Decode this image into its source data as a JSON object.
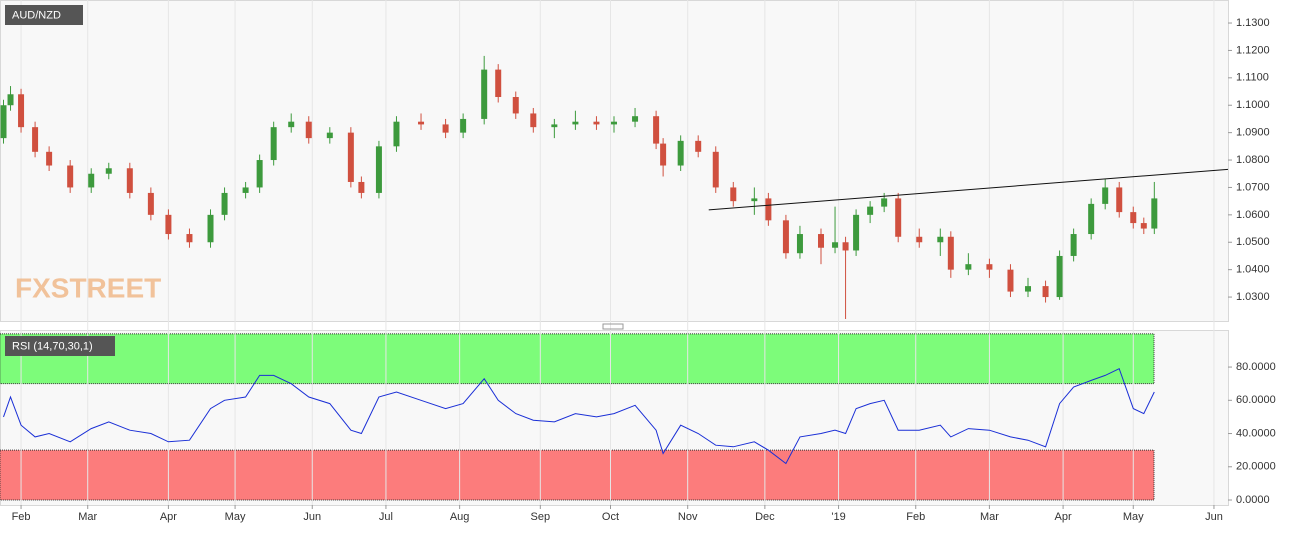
{
  "chart_data": [
    {
      "type": "candlestick",
      "title": "AUD/NZD",
      "watermark": "FXSTREET",
      "x": [
        1,
        3,
        6,
        10,
        14,
        20,
        26,
        31,
        37,
        43,
        48,
        54,
        60,
        64,
        70,
        74,
        78,
        83,
        88,
        94,
        100,
        103,
        108,
        113,
        120,
        127,
        132,
        138,
        142,
        147,
        152,
        158,
        164,
        170,
        175,
        181,
        187,
        189,
        194,
        199,
        204,
        209,
        215,
        219,
        224,
        228,
        234,
        238,
        241,
        244,
        248,
        252,
        256,
        262,
        268,
        271,
        276,
        282,
        288,
        293,
        298,
        302,
        306,
        311,
        315,
        319,
        323,
        326,
        329
      ],
      "open": [
        1.088,
        1.1,
        1.104,
        1.092,
        1.083,
        1.078,
        1.07,
        1.075,
        1.077,
        1.068,
        1.06,
        1.053,
        1.05,
        1.06,
        1.068,
        1.07,
        1.08,
        1.092,
        1.094,
        1.088,
        1.09,
        1.072,
        1.068,
        1.085,
        1.094,
        1.093,
        1.09,
        1.095,
        1.113,
        1.103,
        1.097,
        1.092,
        1.093,
        1.094,
        1.093,
        1.094,
        1.096,
        1.086,
        1.078,
        1.087,
        1.083,
        1.07,
        1.065,
        1.066,
        1.058,
        1.046,
        1.053,
        1.048,
        1.05,
        1.047,
        1.06,
        1.063,
        1.066,
        1.052,
        1.05,
        1.052,
        1.04,
        1.042,
        1.04,
        1.032,
        1.034,
        1.03,
        1.045,
        1.053,
        1.064,
        1.07,
        1.061,
        1.057,
        1.055
      ],
      "high": [
        1.102,
        1.107,
        1.106,
        1.094,
        1.085,
        1.08,
        1.077,
        1.079,
        1.079,
        1.07,
        1.062,
        1.055,
        1.062,
        1.07,
        1.072,
        1.082,
        1.094,
        1.097,
        1.096,
        1.092,
        1.092,
        1.074,
        1.087,
        1.096,
        1.097,
        1.095,
        1.097,
        1.118,
        1.115,
        1.105,
        1.099,
        1.095,
        1.098,
        1.096,
        1.096,
        1.099,
        1.098,
        1.088,
        1.089,
        1.089,
        1.085,
        1.072,
        1.07,
        1.068,
        1.06,
        1.056,
        1.055,
        1.063,
        1.052,
        1.062,
        1.065,
        1.068,
        1.068,
        1.055,
        1.055,
        1.054,
        1.046,
        1.044,
        1.042,
        1.037,
        1.036,
        1.047,
        1.055,
        1.066,
        1.073,
        1.072,
        1.063,
        1.059,
        1.072
      ],
      "low": [
        1.086,
        1.098,
        1.09,
        1.081,
        1.076,
        1.068,
        1.068,
        1.073,
        1.066,
        1.058,
        1.051,
        1.048,
        1.048,
        1.058,
        1.066,
        1.068,
        1.078,
        1.09,
        1.086,
        1.086,
        1.07,
        1.066,
        1.066,
        1.083,
        1.091,
        1.088,
        1.088,
        1.093,
        1.101,
        1.095,
        1.09,
        1.088,
        1.091,
        1.091,
        1.09,
        1.092,
        1.084,
        1.074,
        1.076,
        1.081,
        1.068,
        1.063,
        1.06,
        1.056,
        1.044,
        1.044,
        1.042,
        1.046,
        1.022,
        1.045,
        1.057,
        1.061,
        1.05,
        1.048,
        1.045,
        1.037,
        1.038,
        1.037,
        1.03,
        1.03,
        1.028,
        1.029,
        1.043,
        1.051,
        1.062,
        1.059,
        1.055,
        1.053,
        1.053
      ],
      "close": [
        1.1,
        1.104,
        1.092,
        1.083,
        1.078,
        1.07,
        1.075,
        1.077,
        1.068,
        1.06,
        1.053,
        1.05,
        1.06,
        1.068,
        1.07,
        1.08,
        1.092,
        1.094,
        1.088,
        1.09,
        1.072,
        1.068,
        1.085,
        1.094,
        1.093,
        1.09,
        1.095,
        1.113,
        1.103,
        1.097,
        1.092,
        1.093,
        1.094,
        1.093,
        1.094,
        1.096,
        1.086,
        1.078,
        1.087,
        1.083,
        1.07,
        1.065,
        1.066,
        1.058,
        1.046,
        1.053,
        1.048,
        1.05,
        1.047,
        1.06,
        1.063,
        1.066,
        1.052,
        1.05,
        1.052,
        1.04,
        1.042,
        1.04,
        1.032,
        1.034,
        1.03,
        1.045,
        1.053,
        1.064,
        1.07,
        1.061,
        1.057,
        1.055,
        1.066
      ],
      "up_color": "#3d9a3d",
      "down_color": "#d0503f",
      "trendline": {
        "x": [
          202,
          350
        ],
        "values": [
          1.0618,
          1.0766
        ],
        "color": "#111111"
      },
      "xlim": [
        0,
        350
      ],
      "ylim": [
        1.0209,
        1.1384
      ],
      "yticks": [
        {
          "value": 1.03,
          "label": "1.0300"
        },
        {
          "value": 1.04,
          "label": "1.0400"
        },
        {
          "value": 1.05,
          "label": "1.0500"
        },
        {
          "value": 1.06,
          "label": "1.0600"
        },
        {
          "value": 1.07,
          "label": "1.0700"
        },
        {
          "value": 1.08,
          "label": "1.0800"
        },
        {
          "value": 1.09,
          "label": "1.0900"
        },
        {
          "value": 1.1,
          "label": "1.1000"
        },
        {
          "value": 1.11,
          "label": "1.1100"
        },
        {
          "value": 1.12,
          "label": "1.1200"
        },
        {
          "value": 1.13,
          "label": "1.1300"
        }
      ]
    },
    {
      "type": "line",
      "title": "RSI (14,70,30,1)",
      "x": [
        1,
        3,
        6,
        10,
        14,
        20,
        26,
        31,
        37,
        43,
        48,
        54,
        60,
        64,
        70,
        74,
        78,
        83,
        88,
        94,
        100,
        103,
        108,
        113,
        120,
        127,
        132,
        138,
        142,
        147,
        152,
        158,
        164,
        170,
        175,
        181,
        187,
        189,
        194,
        199,
        204,
        209,
        215,
        219,
        224,
        228,
        234,
        238,
        241,
        244,
        248,
        252,
        256,
        262,
        268,
        271,
        276,
        282,
        288,
        293,
        298,
        302,
        306,
        311,
        315,
        319,
        323,
        326,
        329
      ],
      "values": [
        50,
        62,
        45,
        38,
        40,
        35,
        43,
        47,
        42,
        40,
        35,
        36,
        55,
        60,
        62,
        75,
        75,
        70,
        62,
        58,
        42,
        40,
        62,
        65,
        60,
        55,
        58,
        73,
        60,
        52,
        48,
        47,
        52,
        50,
        52,
        57,
        42,
        28,
        45,
        40,
        33,
        32,
        35,
        30,
        22,
        38,
        40,
        42,
        40,
        55,
        58,
        60,
        42,
        42,
        45,
        38,
        43,
        42,
        38,
        36,
        32,
        58,
        68,
        72,
        75,
        79,
        55,
        52,
        65
      ],
      "color": "#1a2fd6",
      "zones": [
        {
          "from": 70,
          "to": 100,
          "color": "#7dfc7a"
        },
        {
          "from": 0,
          "to": 30,
          "color": "#fc7c7c"
        }
      ],
      "xlim": [
        0,
        350
      ],
      "ylim": [
        -3,
        102.3
      ],
      "yticks": [
        {
          "value": 0,
          "label": "0.0000"
        },
        {
          "value": 20,
          "label": "20.0000"
        },
        {
          "value": 40,
          "label": "40.0000"
        },
        {
          "value": 60,
          "label": "60.0000"
        },
        {
          "value": 80,
          "label": "80.0000"
        }
      ],
      "xticks": [
        {
          "value": 6,
          "label": "Feb"
        },
        {
          "value": 25,
          "label": "Mar"
        },
        {
          "value": 48,
          "label": "Apr"
        },
        {
          "value": 67,
          "label": "May"
        },
        {
          "value": 89,
          "label": "Jun"
        },
        {
          "value": 110,
          "label": "Jul"
        },
        {
          "value": 131,
          "label": "Aug"
        },
        {
          "value": 154,
          "label": "Sep"
        },
        {
          "value": 174,
          "label": "Oct"
        },
        {
          "value": 196,
          "label": "Nov"
        },
        {
          "value": 218,
          "label": "Dec"
        },
        {
          "value": 239,
          "label": "'19"
        },
        {
          "value": 261,
          "label": "Feb"
        },
        {
          "value": 282,
          "label": "Mar"
        },
        {
          "value": 303,
          "label": "Apr"
        },
        {
          "value": 323,
          "label": "May"
        },
        {
          "value": 346,
          "label": "Jun"
        }
      ]
    }
  ]
}
